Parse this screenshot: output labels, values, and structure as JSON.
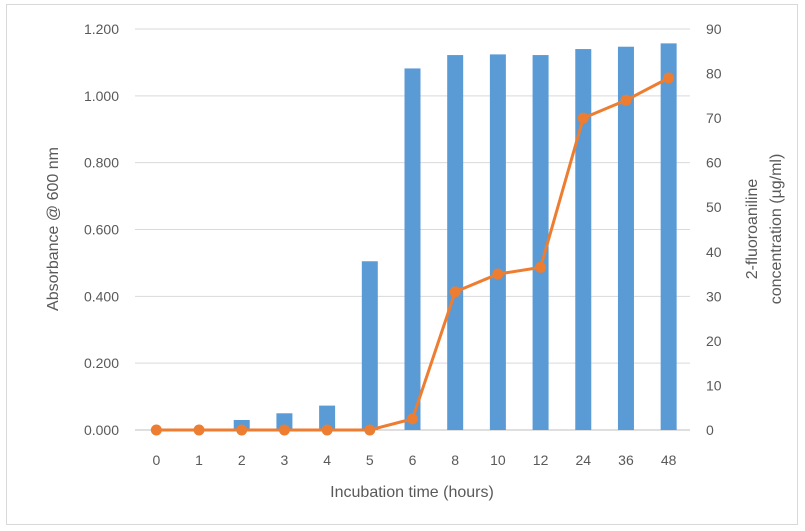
{
  "chart_data": {
    "type": "bar+line",
    "categories": [
      "0",
      "1",
      "2",
      "3",
      "4",
      "5",
      "6",
      "8",
      "10",
      "12",
      "24",
      "36",
      "48"
    ],
    "xlabel": "Incubation time (hours)",
    "ylabel": "Absorbance @ 600 nm",
    "y2label_lines": [
      "2-fluoroaniline",
      "concentration (µg/ml)"
    ],
    "ylim": [
      0,
      1.2
    ],
    "y2lim": [
      0,
      90
    ],
    "y_ticks": [
      "0.000",
      "0.200",
      "0.400",
      "0.600",
      "0.800",
      "1.000",
      "1.200"
    ],
    "y2_ticks": [
      "0",
      "10",
      "20",
      "30",
      "40",
      "50",
      "60",
      "70",
      "80",
      "90"
    ],
    "grid": true,
    "legend": "none",
    "series": [
      {
        "type": "bar",
        "axis": "left",
        "color": "#5b9bd5",
        "values": [
          0.0,
          0.0,
          0.03,
          0.05,
          0.073,
          0.505,
          1.082,
          1.122,
          1.124,
          1.122,
          1.14,
          1.147,
          1.157
        ]
      },
      {
        "type": "line",
        "axis": "right",
        "color": "#ed7d31",
        "values": [
          0,
          0,
          0,
          0,
          0,
          0,
          2.5,
          31,
          35,
          36.5,
          70,
          74,
          79
        ]
      }
    ]
  }
}
